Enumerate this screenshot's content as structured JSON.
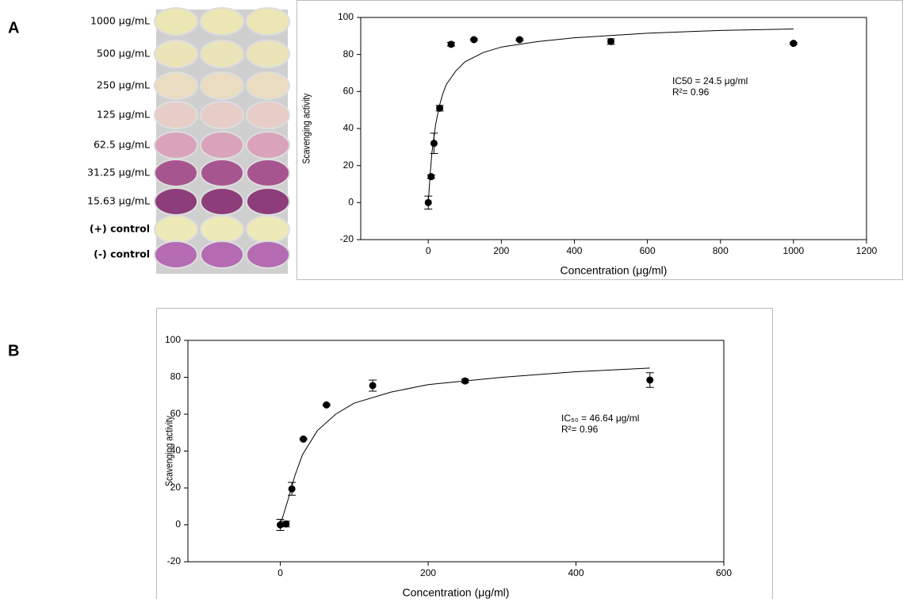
{
  "panels": [
    "A",
    "B"
  ],
  "plate": {
    "labels": [
      "1000 μg/mL",
      "500 μg/mL",
      "250 μg/mL",
      "125 μg/mL",
      "62.5 μg/mL",
      "31.25 μg/mL",
      "15.63 μg/mL",
      "(+) control",
      "(-) control"
    ]
  },
  "chart_data": [
    {
      "type": "scatter",
      "color": "#000000",
      "x": [
        0,
        7.8,
        15.63,
        31.25,
        62.5,
        125,
        250,
        500,
        1000
      ],
      "values": [
        0,
        14,
        32,
        51,
        85.5,
        88,
        88,
        87,
        86
      ],
      "errors": [
        3.5,
        1,
        5.5,
        1.5,
        1,
        0.5,
        0.5,
        1.5,
        0.5
      ],
      "fit": {
        "x": [
          0,
          5,
          10,
          20,
          30,
          40,
          50,
          75,
          100,
          150,
          200,
          300,
          400,
          600,
          800,
          1000
        ],
        "values": [
          0,
          15,
          27,
          42,
          52,
          59,
          64,
          71,
          76,
          81,
          84,
          87,
          89,
          91.5,
          93,
          93.8
        ]
      },
      "xlim": [
        -185,
        1200
      ],
      "ylim": [
        -20,
        100
      ],
      "xticks": [
        0,
        200,
        400,
        600,
        800,
        1000,
        1200
      ],
      "yticks": [
        -20,
        0,
        20,
        40,
        60,
        80,
        100
      ],
      "x_label": "Concentration (μg/ml)",
      "y_label": "Scavenging activity",
      "annotations": [
        "IC50 = 24.5 μg/ml",
        "R²= 0.96"
      ]
    },
    {
      "type": "scatter",
      "color": "#000000",
      "x": [
        0,
        7.8,
        15.63,
        31.25,
        62.5,
        125,
        250,
        500
      ],
      "values": [
        0,
        0.5,
        19.5,
        46.5,
        65,
        75.5,
        78,
        78.5
      ],
      "errors": [
        3,
        1.5,
        3.5,
        0.5,
        0.5,
        3,
        1,
        4
      ],
      "fit": {
        "x": [
          0,
          10,
          20,
          30,
          50,
          75,
          100,
          150,
          200,
          300,
          400,
          500
        ],
        "values": [
          0,
          13,
          27,
          38,
          51,
          60,
          66,
          72,
          76,
          80,
          83,
          85
        ]
      },
      "xlim": [
        -125,
        600
      ],
      "ylim": [
        -20,
        100
      ],
      "xticks": [
        0,
        200,
        400,
        600
      ],
      "yticks": [
        -20,
        0,
        20,
        40,
        60,
        80,
        100
      ],
      "x_label": "Concentration (μg/ml)",
      "y_label": "Scavenging activity",
      "annotations": [
        "IC₅₀ = 46.64 μg/ml",
        "R²= 0.96"
      ]
    }
  ]
}
